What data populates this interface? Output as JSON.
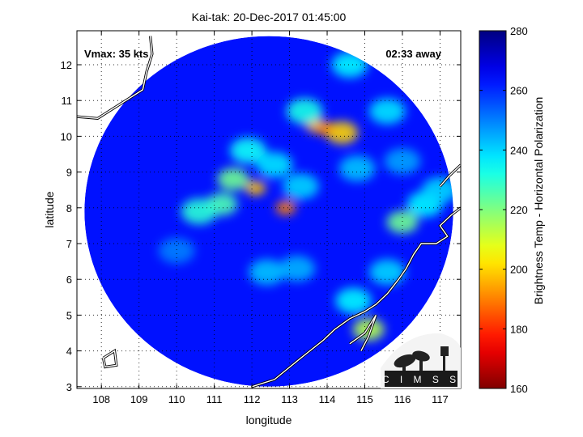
{
  "chart_data": {
    "type": "heatmap",
    "title": "Kai-tak: 20-Dec-2017 01:45:00",
    "xlabel": "longitude",
    "ylabel": "latitude",
    "xlim": [
      107.35,
      117.55
    ],
    "ylim": [
      2.95,
      12.95
    ],
    "xticks": [
      108,
      109,
      110,
      111,
      112,
      113,
      114,
      115,
      116,
      117
    ],
    "yticks": [
      3,
      4,
      5,
      6,
      7,
      8,
      9,
      10,
      11,
      12
    ],
    "grid": true,
    "annotations": {
      "vmax": "Vmax: 35 kts",
      "away": "02:33 away"
    },
    "logo_text": "CIMSS",
    "colorbar": {
      "label": "Brightness Temp - Horizontal Polarization",
      "min": 160,
      "max": 280,
      "ticks": [
        160,
        180,
        200,
        220,
        240,
        260,
        280
      ],
      "colormap": "jet-reversed"
    },
    "swath": {
      "center_lon": 112.45,
      "center_lat": 7.9,
      "radius_deg": 4.9
    },
    "background_temp": 263,
    "features": [
      {
        "lon": 114.0,
        "lat": 10.2,
        "temp": 178
      },
      {
        "lon": 113.7,
        "lat": 10.3,
        "temp": 196
      },
      {
        "lon": 114.4,
        "lat": 10.1,
        "temp": 200
      },
      {
        "lon": 113.4,
        "lat": 10.7,
        "temp": 232
      },
      {
        "lon": 112.9,
        "lat": 8.0,
        "temp": 190
      },
      {
        "lon": 112.1,
        "lat": 8.55,
        "temp": 198
      },
      {
        "lon": 111.5,
        "lat": 8.8,
        "temp": 222
      },
      {
        "lon": 111.2,
        "lat": 8.1,
        "temp": 226
      },
      {
        "lon": 110.6,
        "lat": 7.9,
        "temp": 230
      },
      {
        "lon": 111.9,
        "lat": 9.6,
        "temp": 234
      },
      {
        "lon": 112.6,
        "lat": 9.2,
        "temp": 238
      },
      {
        "lon": 113.3,
        "lat": 8.6,
        "temp": 240
      },
      {
        "lon": 115.1,
        "lat": 4.6,
        "temp": 214
      },
      {
        "lon": 114.7,
        "lat": 5.4,
        "temp": 236
      },
      {
        "lon": 115.6,
        "lat": 6.2,
        "temp": 240
      },
      {
        "lon": 116.0,
        "lat": 7.6,
        "temp": 222
      },
      {
        "lon": 116.6,
        "lat": 8.1,
        "temp": 236
      },
      {
        "lon": 117.0,
        "lat": 8.5,
        "temp": 240
      },
      {
        "lon": 115.6,
        "lat": 10.7,
        "temp": 238
      },
      {
        "lon": 116.0,
        "lat": 9.3,
        "temp": 246
      },
      {
        "lon": 114.8,
        "lat": 9.1,
        "temp": 242
      },
      {
        "lon": 112.4,
        "lat": 6.2,
        "temp": 242
      },
      {
        "lon": 113.2,
        "lat": 6.3,
        "temp": 244
      },
      {
        "lon": 114.6,
        "lat": 12.0,
        "temp": 236
      },
      {
        "lon": 110.0,
        "lat": 6.8,
        "temp": 250
      }
    ],
    "coastlines": [
      [
        [
          107.35,
          10.55
        ],
        [
          107.9,
          10.5
        ],
        [
          108.5,
          10.9
        ],
        [
          109.1,
          11.3
        ],
        [
          109.2,
          11.8
        ],
        [
          109.35,
          12.3
        ],
        [
          109.3,
          12.8
        ]
      ],
      [
        [
          112.0,
          3.0
        ],
        [
          112.6,
          3.2
        ],
        [
          113.3,
          3.8
        ],
        [
          113.9,
          4.3
        ],
        [
          114.2,
          4.6
        ],
        [
          114.6,
          4.9
        ],
        [
          115.0,
          5.1
        ],
        [
          115.3,
          5.3
        ],
        [
          115.6,
          5.6
        ],
        [
          115.9,
          6.0
        ],
        [
          116.1,
          6.3
        ],
        [
          116.3,
          6.7
        ],
        [
          116.5,
          7.0
        ],
        [
          116.9,
          7.0
        ],
        [
          117.2,
          7.2
        ],
        [
          117.0,
          7.5
        ],
        [
          117.3,
          7.8
        ],
        [
          117.55,
          8.0
        ]
      ],
      [
        [
          114.6,
          4.2
        ],
        [
          115.0,
          4.5
        ],
        [
          115.3,
          5.0
        ],
        [
          115.1,
          4.4
        ],
        [
          114.9,
          4.0
        ]
      ],
      [
        [
          117.0,
          8.6
        ],
        [
          117.25,
          8.9
        ],
        [
          117.55,
          9.2
        ]
      ],
      [
        [
          108.05,
          3.8
        ],
        [
          108.35,
          4.0
        ],
        [
          108.4,
          3.6
        ],
        [
          108.1,
          3.55
        ],
        [
          108.05,
          3.8
        ]
      ]
    ]
  }
}
